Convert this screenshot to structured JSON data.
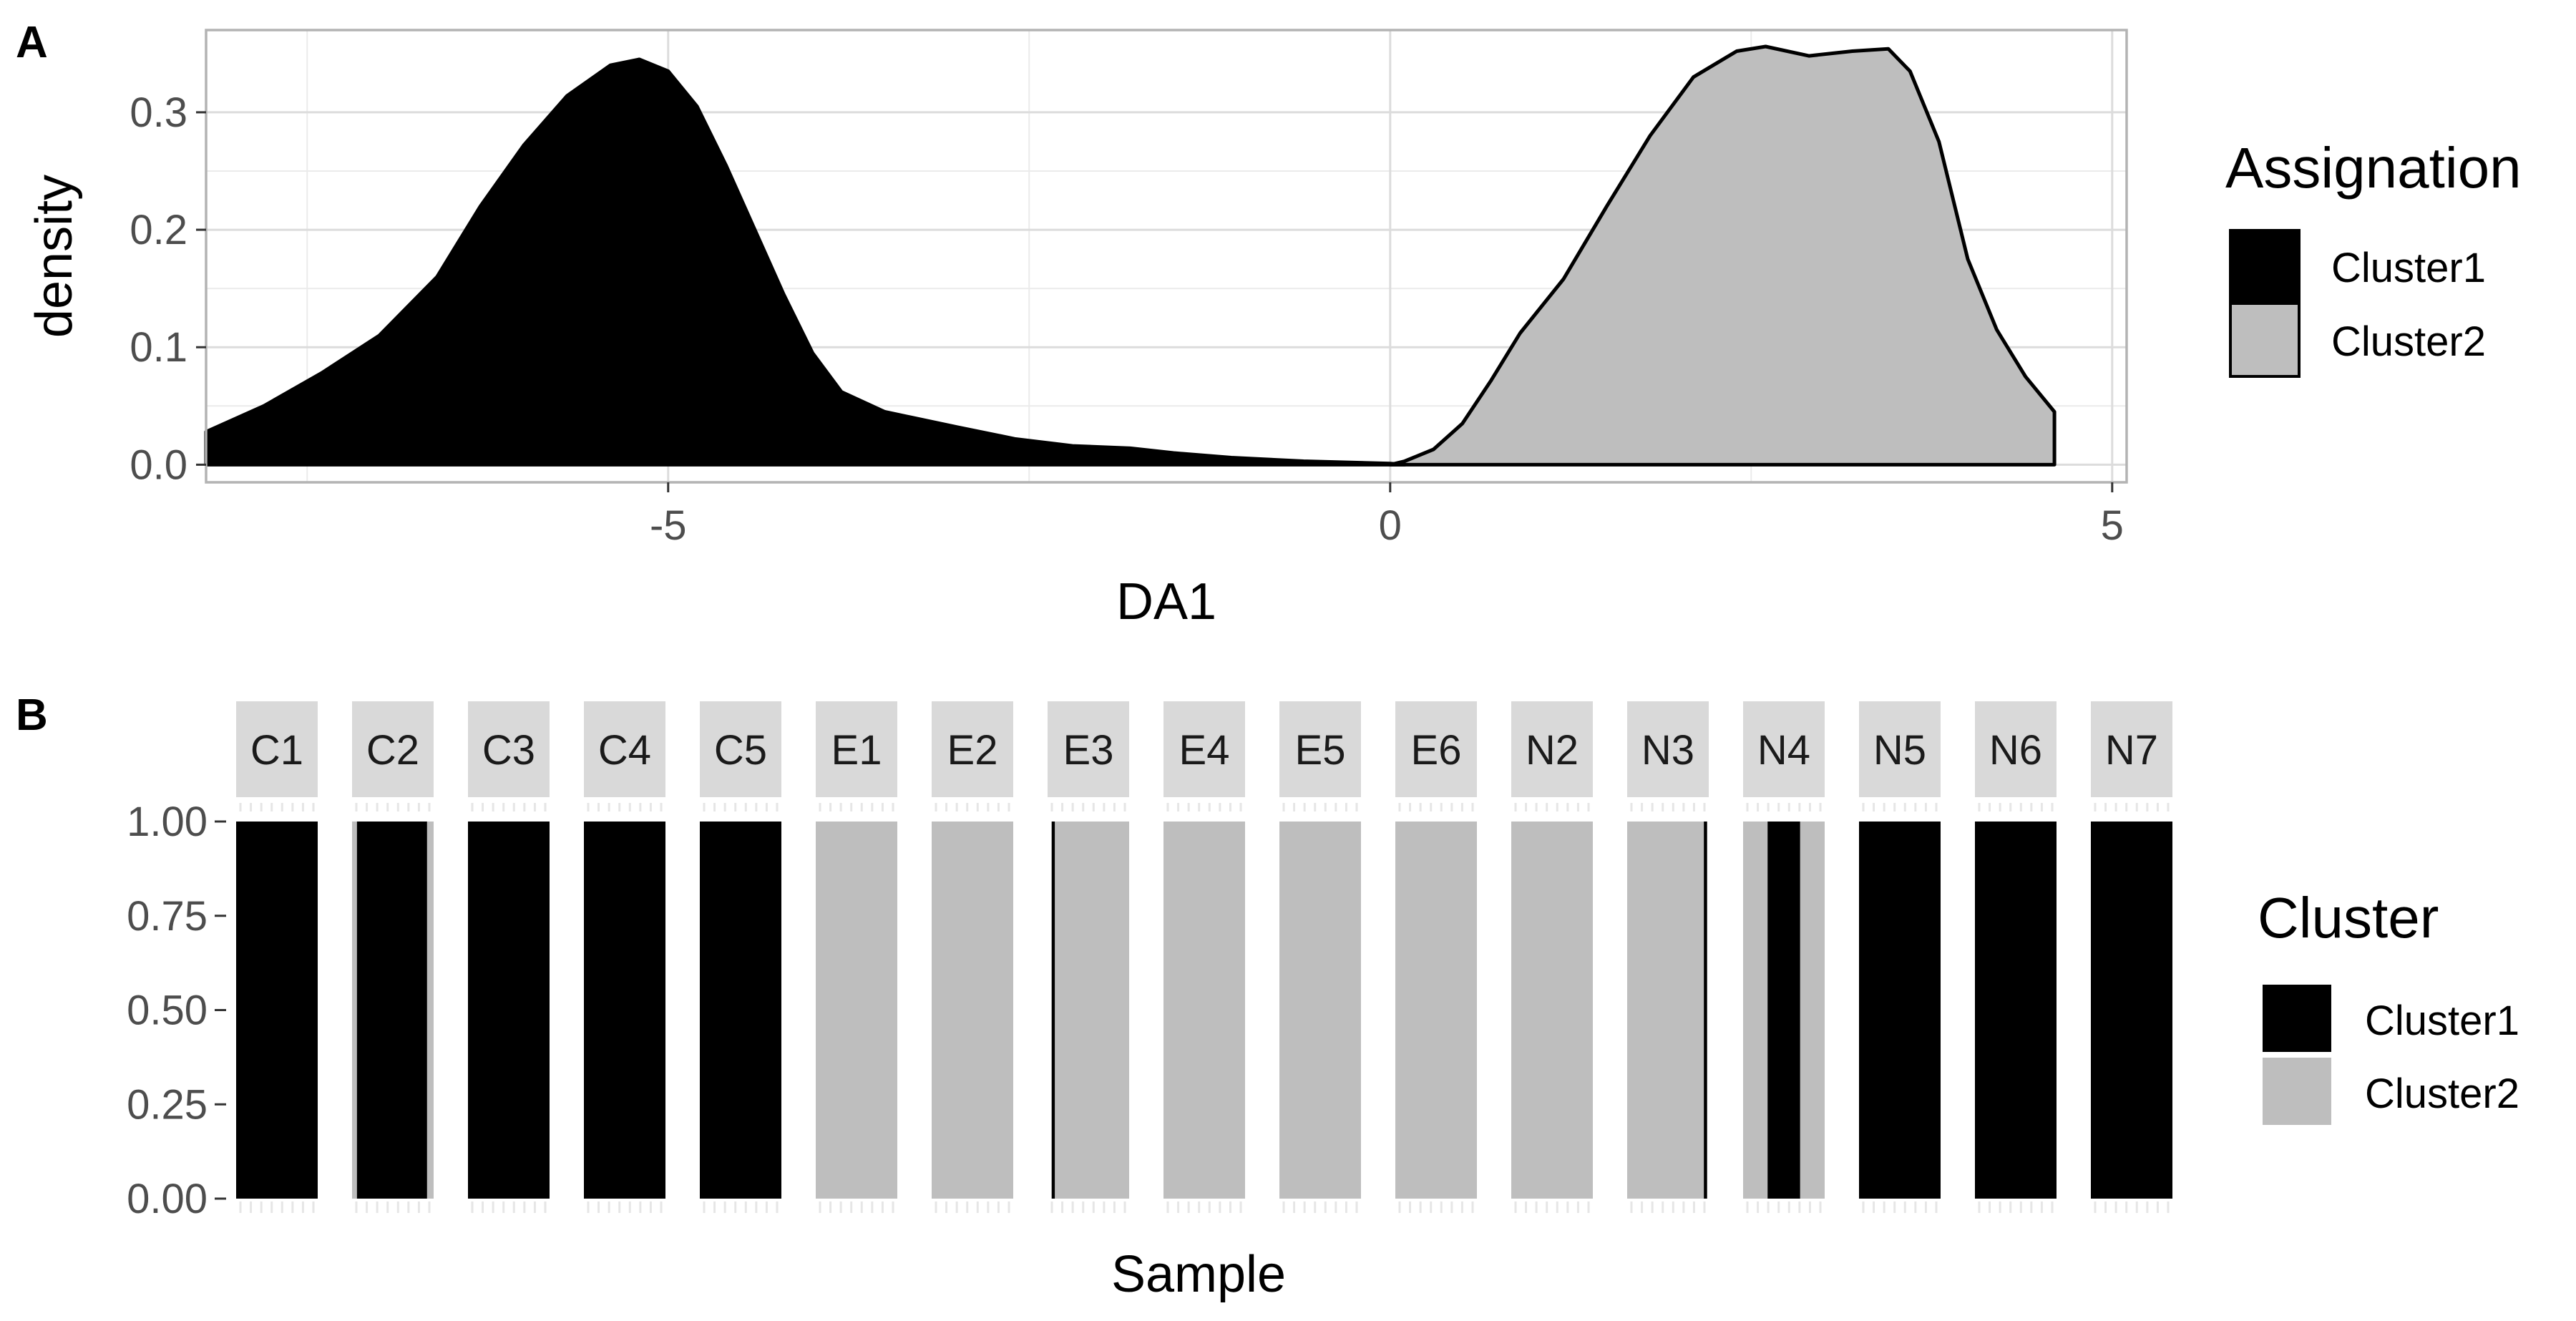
{
  "chart_data": [
    {
      "panel_label": "A",
      "type": "area",
      "subtype": "density",
      "xlabel": "DA1",
      "ylabel": "density",
      "xlim": [
        -8.2,
        5.1
      ],
      "ylim": [
        -0.015,
        0.37
      ],
      "x_ticks": [
        {
          "value": -5,
          "label": "-5"
        },
        {
          "value": 0,
          "label": "0"
        },
        {
          "value": 5,
          "label": "5"
        }
      ],
      "y_ticks": [
        {
          "value": 0,
          "label": "0.0"
        },
        {
          "value": 0.1,
          "label": "0.1"
        },
        {
          "value": 0.2,
          "label": "0.2"
        },
        {
          "value": 0.3,
          "label": "0.3"
        }
      ],
      "grid": true,
      "legend": {
        "title": "Assignation",
        "position": "right"
      },
      "series": [
        {
          "name": "Cluster1",
          "color": "#000000",
          "points": [
            [
              -8.2,
              0.0
            ],
            [
              -8.2,
              0.028
            ],
            [
              -7.8,
              0.05
            ],
            [
              -7.4,
              0.078
            ],
            [
              -7.0,
              0.11
            ],
            [
              -6.6,
              0.16
            ],
            [
              -6.3,
              0.22
            ],
            [
              -6.0,
              0.272
            ],
            [
              -5.7,
              0.314
            ],
            [
              -5.4,
              0.34
            ],
            [
              -5.2,
              0.345
            ],
            [
              -5.0,
              0.335
            ],
            [
              -4.8,
              0.305
            ],
            [
              -4.6,
              0.255
            ],
            [
              -4.4,
              0.2
            ],
            [
              -4.2,
              0.145
            ],
            [
              -4.0,
              0.095
            ],
            [
              -3.8,
              0.062
            ],
            [
              -3.5,
              0.045
            ],
            [
              -3.0,
              0.032
            ],
            [
              -2.6,
              0.022
            ],
            [
              -2.2,
              0.016
            ],
            [
              -1.8,
              0.014
            ],
            [
              -1.5,
              0.01
            ],
            [
              -1.1,
              0.006
            ],
            [
              -0.6,
              0.003
            ],
            [
              0.0,
              0.001
            ],
            [
              0.1,
              0.0
            ]
          ]
        },
        {
          "name": "Cluster2",
          "color": "#bebebe",
          "points": [
            [
              0.0,
              0.0
            ],
            [
              0.1,
              0.003
            ],
            [
              0.3,
              0.013
            ],
            [
              0.5,
              0.035
            ],
            [
              0.7,
              0.072
            ],
            [
              0.9,
              0.112
            ],
            [
              1.2,
              0.158
            ],
            [
              1.5,
              0.22
            ],
            [
              1.8,
              0.28
            ],
            [
              2.1,
              0.33
            ],
            [
              2.4,
              0.352
            ],
            [
              2.6,
              0.356
            ],
            [
              2.9,
              0.348
            ],
            [
              3.2,
              0.352
            ],
            [
              3.45,
              0.354
            ],
            [
              3.6,
              0.335
            ],
            [
              3.8,
              0.275
            ],
            [
              4.0,
              0.175
            ],
            [
              4.2,
              0.115
            ],
            [
              4.4,
              0.075
            ],
            [
              4.6,
              0.045
            ],
            [
              4.6,
              0.0
            ]
          ]
        }
      ]
    },
    {
      "panel_label": "B",
      "type": "bar",
      "subtype": "stacked-proportion",
      "xlabel": "Sample",
      "ylabel": "",
      "ylim": [
        0,
        1
      ],
      "y_ticks": [
        {
          "value": 0,
          "label": "0.00"
        },
        {
          "value": 0.25,
          "label": "0.25"
        },
        {
          "value": 0.5,
          "label": "0.50"
        },
        {
          "value": 0.75,
          "label": "0.75"
        },
        {
          "value": 1,
          "label": "1.00"
        }
      ],
      "legend": {
        "title": "Cluster",
        "position": "right"
      },
      "series": [
        {
          "name": "Cluster1",
          "color": "#000000"
        },
        {
          "name": "Cluster2",
          "color": "#bebebe"
        }
      ],
      "facets": [
        {
          "name": "C1",
          "segments": [
            {
              "cluster": "Cluster1",
              "from": 0.0,
              "to": 1.0
            }
          ]
        },
        {
          "name": "C2",
          "segments": [
            {
              "cluster": "Cluster2",
              "from": 0.0,
              "to": 0.06
            },
            {
              "cluster": "Cluster1",
              "from": 0.06,
              "to": 0.92
            },
            {
              "cluster": "Cluster2",
              "from": 0.92,
              "to": 1.0
            }
          ]
        },
        {
          "name": "C3",
          "segments": [
            {
              "cluster": "Cluster1",
              "from": 0.0,
              "to": 1.0
            }
          ]
        },
        {
          "name": "C4",
          "segments": [
            {
              "cluster": "Cluster1",
              "from": 0.0,
              "to": 1.0
            }
          ]
        },
        {
          "name": "C5",
          "segments": [
            {
              "cluster": "Cluster1",
              "from": 0.0,
              "to": 1.0
            }
          ]
        },
        {
          "name": "E1",
          "segments": [
            {
              "cluster": "Cluster2",
              "from": 0.0,
              "to": 1.0
            }
          ]
        },
        {
          "name": "E2",
          "segments": [
            {
              "cluster": "Cluster2",
              "from": 0.0,
              "to": 1.0
            }
          ]
        },
        {
          "name": "E3",
          "segments": [
            {
              "cluster": "Cluster1",
              "from": 0.05,
              "to": 0.09
            },
            {
              "cluster": "Cluster2",
              "from": 0.09,
              "to": 1.0
            }
          ]
        },
        {
          "name": "E4",
          "segments": [
            {
              "cluster": "Cluster2",
              "from": 0.0,
              "to": 1.0
            }
          ]
        },
        {
          "name": "E5",
          "segments": [
            {
              "cluster": "Cluster2",
              "from": 0.0,
              "to": 1.0
            }
          ]
        },
        {
          "name": "E6",
          "segments": [
            {
              "cluster": "Cluster2",
              "from": 0.0,
              "to": 1.0
            }
          ]
        },
        {
          "name": "N2",
          "segments": [
            {
              "cluster": "Cluster2",
              "from": 0.0,
              "to": 1.0
            }
          ]
        },
        {
          "name": "N3",
          "segments": [
            {
              "cluster": "Cluster2",
              "from": 0.0,
              "to": 0.94
            },
            {
              "cluster": "Cluster1",
              "from": 0.94,
              "to": 0.98
            }
          ]
        },
        {
          "name": "N4",
          "segments": [
            {
              "cluster": "Cluster2",
              "from": 0.0,
              "to": 0.3
            },
            {
              "cluster": "Cluster1",
              "from": 0.3,
              "to": 0.7
            },
            {
              "cluster": "Cluster2",
              "from": 0.7,
              "to": 1.0
            }
          ]
        },
        {
          "name": "N5",
          "segments": [
            {
              "cluster": "Cluster1",
              "from": 0.0,
              "to": 1.0
            }
          ]
        },
        {
          "name": "N6",
          "segments": [
            {
              "cluster": "Cluster1",
              "from": 0.0,
              "to": 1.0
            }
          ]
        },
        {
          "name": "N7",
          "segments": [
            {
              "cluster": "Cluster1",
              "from": 0.0,
              "to": 1.0
            }
          ]
        }
      ]
    }
  ]
}
